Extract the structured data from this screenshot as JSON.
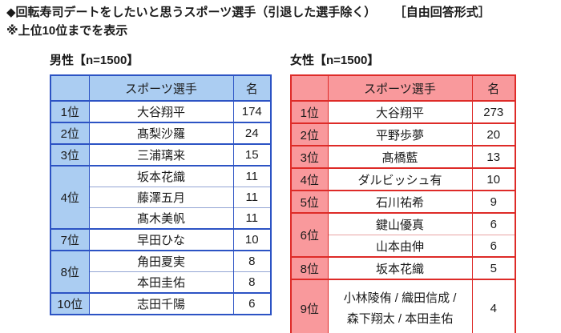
{
  "header": {
    "title": "◆回転寿司デートをしたいと思うスポーツ選手（引退した選手除く）",
    "format_note": "［自由回答形式］",
    "subtitle": "※上位10位までを表示"
  },
  "colors": {
    "male_border": "#2c53c4",
    "male_fill": "#abcdf2",
    "male_subline": "#93a5d4",
    "female_border": "#de2b28",
    "female_fill": "#f9999c",
    "female_subline": "#e8a3a3",
    "text": "#1a1a1a",
    "background": "#ffffff"
  },
  "male_table": {
    "caption": "男性【n=1500】",
    "columns": [
      "",
      "スポーツ選手",
      "名"
    ],
    "rows": [
      {
        "rank": "1位",
        "rowspan": 1,
        "player": "大谷翔平",
        "count": "174"
      },
      {
        "rank": "2位",
        "rowspan": 1,
        "player": "髙梨沙羅",
        "count": "24"
      },
      {
        "rank": "3位",
        "rowspan": 1,
        "player": "三浦璃来",
        "count": "15"
      },
      {
        "rank": "4位",
        "rowspan": 3,
        "player": "坂本花織",
        "count": "11"
      },
      {
        "player": "藤澤五月",
        "count": "11"
      },
      {
        "player": "髙木美帆",
        "count": "11"
      },
      {
        "rank": "7位",
        "rowspan": 1,
        "player": "早田ひな",
        "count": "10"
      },
      {
        "rank": "8位",
        "rowspan": 2,
        "player": "角田夏実",
        "count": "8"
      },
      {
        "player": "本田圭佑",
        "count": "8"
      },
      {
        "rank": "10位",
        "rowspan": 1,
        "player": "志田千陽",
        "count": "6"
      }
    ]
  },
  "female_table": {
    "caption": "女性【n=1500】",
    "columns": [
      "",
      "スポーツ選手",
      "名"
    ],
    "rows": [
      {
        "rank": "1位",
        "rowspan": 1,
        "player": "大谷翔平",
        "count": "273"
      },
      {
        "rank": "2位",
        "rowspan": 1,
        "player": "平野歩夢",
        "count": "20"
      },
      {
        "rank": "3位",
        "rowspan": 1,
        "player": "髙橋藍",
        "count": "13"
      },
      {
        "rank": "4位",
        "rowspan": 1,
        "player": "ダルビッシュ有",
        "count": "10"
      },
      {
        "rank": "5位",
        "rowspan": 1,
        "player": "石川祐希",
        "count": "9"
      },
      {
        "rank": "6位",
        "rowspan": 2,
        "player": "鍵山優真",
        "count": "6"
      },
      {
        "player": "山本由伸",
        "count": "6"
      },
      {
        "rank": "8位",
        "rowspan": 1,
        "player": "坂本花織",
        "count": "5"
      },
      {
        "rank": "9位",
        "rowspan": 1,
        "player_lines": [
          "小林陵侑 / 織田信成 /",
          "森下翔太 / 本田圭佑"
        ],
        "count": "4",
        "tall": true
      }
    ]
  }
}
